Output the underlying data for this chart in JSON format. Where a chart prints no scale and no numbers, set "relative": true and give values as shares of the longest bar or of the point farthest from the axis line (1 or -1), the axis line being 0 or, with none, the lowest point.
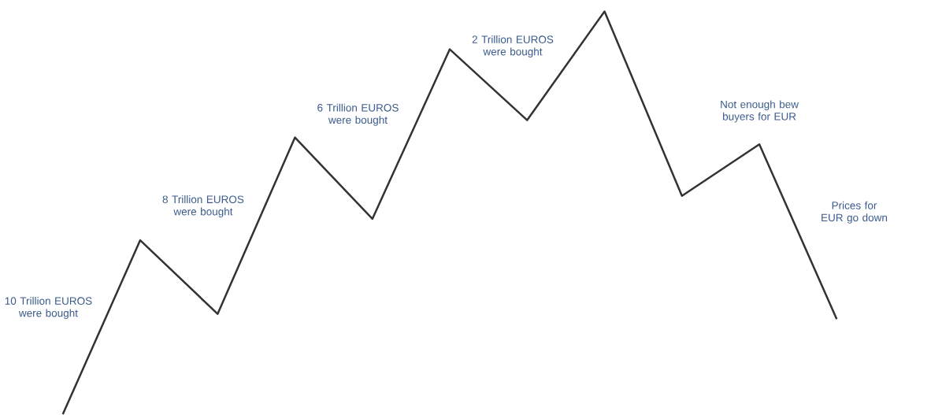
{
  "chart_data": {
    "type": "line",
    "relative": true,
    "categories": [
      null,
      null,
      null,
      null,
      null,
      null,
      null,
      null,
      null,
      null,
      null
    ],
    "series": [
      {
        "color": "#333333",
        "values": [
          0,
          0.432,
          0.249,
          0.687,
          0.485,
          0.906,
          0.73,
          1,
          0.542,
          0.67,
          0.236
        ]
      }
    ],
    "annotations": [
      "10 Trillion EUROS were bought",
      "8 Trillion EUROS were bought",
      "6 Trillion EUROS were bought",
      "2 Trillion EUROS were bought",
      "Not enough bew buyers for EUR",
      "Prices for EUR go down"
    ]
  }
}
